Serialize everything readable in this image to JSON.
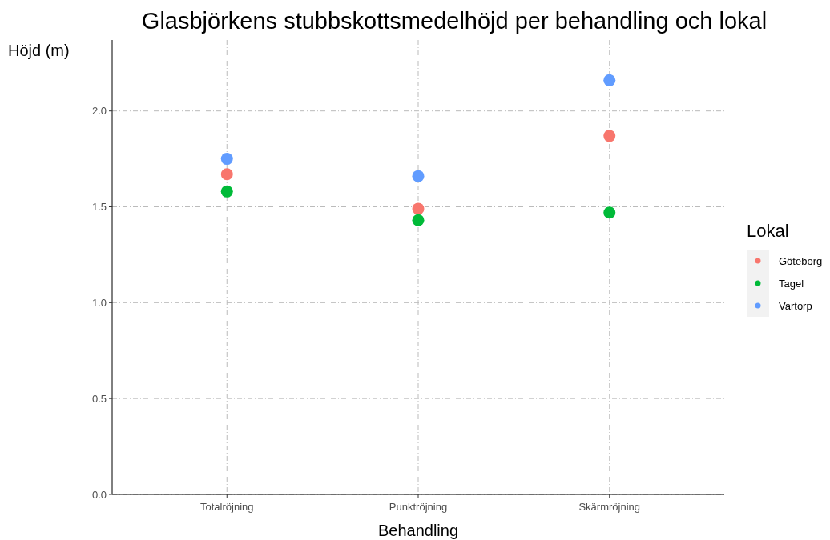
{
  "chart_data": {
    "type": "scatter",
    "title": "Glasbjörkens stubbskottsmedelhöjd per behandling och lokal",
    "xlabel": "Behandling",
    "ylabel": "Höjd (m)",
    "legend_title": "Lokal",
    "categories": [
      "Totalröjning",
      "Punktröjning",
      "Skärmröjning"
    ],
    "series": [
      {
        "name": "Göteborg",
        "color": "#f8766d",
        "values": [
          1.67,
          1.49,
          1.87
        ]
      },
      {
        "name": "Tagel",
        "color": "#00ba38",
        "values": [
          1.58,
          1.43,
          1.47
        ]
      },
      {
        "name": "Vartorp",
        "color": "#619cff",
        "values": [
          1.75,
          1.66,
          2.16
        ]
      }
    ],
    "ylim": [
      0,
      2.37
    ],
    "yticks": [
      {
        "value": 0,
        "label": "0.0"
      },
      {
        "value": 0.5,
        "label": "0.5"
      },
      {
        "value": 1,
        "label": "1.0"
      },
      {
        "value": 1.5,
        "label": "1.5"
      },
      {
        "value": 2,
        "label": "2.0"
      }
    ],
    "grid": true,
    "legend": "right",
    "marker": "circle"
  }
}
